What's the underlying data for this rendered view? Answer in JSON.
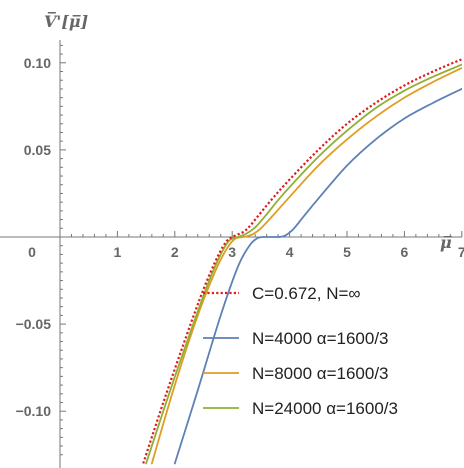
{
  "chart_data": {
    "type": "line",
    "xlabel": "μ̅",
    "ylabel": "V̅'[μ̅]",
    "xlim": [
      -0.6,
      7.4
    ],
    "ylim": [
      -0.125,
      0.11
    ],
    "x_ticks": [
      0,
      1,
      2,
      3,
      4,
      5,
      6,
      7
    ],
    "x_tick_labels": [
      "0",
      "1",
      "2",
      "3",
      "4",
      "5",
      "6",
      "7"
    ],
    "y_ticks": [
      -0.1,
      -0.05,
      0.05,
      0.1
    ],
    "y_tick_labels": [
      "−0.10",
      "−0.05",
      "0.05",
      "0.10"
    ],
    "legend_position": "bottom-right",
    "grid": false,
    "series": [
      {
        "name": "C=0.672, N=∞",
        "color": "#dd1c1c",
        "style": "dotted",
        "x": [
          1.45,
          1.8,
          2.2,
          2.5,
          2.75,
          2.9,
          3.0,
          3.1,
          3.2,
          3.3,
          3.45,
          3.7,
          4.0,
          4.5,
          5.0,
          5.5,
          6.0,
          6.5,
          7.0,
          7.4
        ],
        "y": [
          -0.13,
          -0.095,
          -0.057,
          -0.03,
          -0.011,
          -0.0025,
          0.0,
          0.0015,
          0.003,
          0.006,
          0.012,
          0.022,
          0.033,
          0.05,
          0.065,
          0.077,
          0.087,
          0.095,
          0.102,
          0.107
        ]
      },
      {
        "name": "N=4000  α=1600/3",
        "color": "#5e81b5",
        "style": "solid",
        "x": [
          2.0,
          2.4,
          2.8,
          3.1,
          3.3,
          3.45,
          3.6,
          3.75,
          3.9,
          4.05,
          4.25,
          4.5,
          5.0,
          5.5,
          6.0,
          6.5,
          7.0,
          7.4
        ],
        "y": [
          -0.13,
          -0.088,
          -0.045,
          -0.017,
          -0.005,
          -0.0005,
          0.0,
          0.0,
          0.0005,
          0.004,
          0.012,
          0.022,
          0.041,
          0.056,
          0.068,
          0.077,
          0.085,
          0.091
        ]
      },
      {
        "name": "N=8000  α=1600/3",
        "color": "#e19c24",
        "style": "solid",
        "x": [
          1.6,
          2.0,
          2.4,
          2.7,
          2.9,
          3.05,
          3.2,
          3.35,
          3.5,
          3.7,
          4.0,
          4.5,
          5.0,
          5.5,
          6.0,
          6.5,
          7.0,
          7.4
        ],
        "y": [
          -0.13,
          -0.085,
          -0.045,
          -0.02,
          -0.007,
          -0.001,
          0.0,
          0.0015,
          0.005,
          0.012,
          0.023,
          0.041,
          0.056,
          0.069,
          0.08,
          0.089,
          0.097,
          0.103
        ]
      },
      {
        "name": "N=24000  α=1600/3",
        "color": "#8fb032",
        "style": "solid",
        "x": [
          1.5,
          1.9,
          2.3,
          2.6,
          2.8,
          2.95,
          3.1,
          3.25,
          3.4,
          3.6,
          3.9,
          4.5,
          5.0,
          5.5,
          6.0,
          6.5,
          7.0,
          7.4
        ],
        "y": [
          -0.13,
          -0.09,
          -0.052,
          -0.025,
          -0.01,
          -0.002,
          0.0,
          0.002,
          0.0055,
          0.013,
          0.025,
          0.046,
          0.061,
          0.074,
          0.084,
          0.092,
          0.099,
          0.105
        ]
      }
    ]
  }
}
